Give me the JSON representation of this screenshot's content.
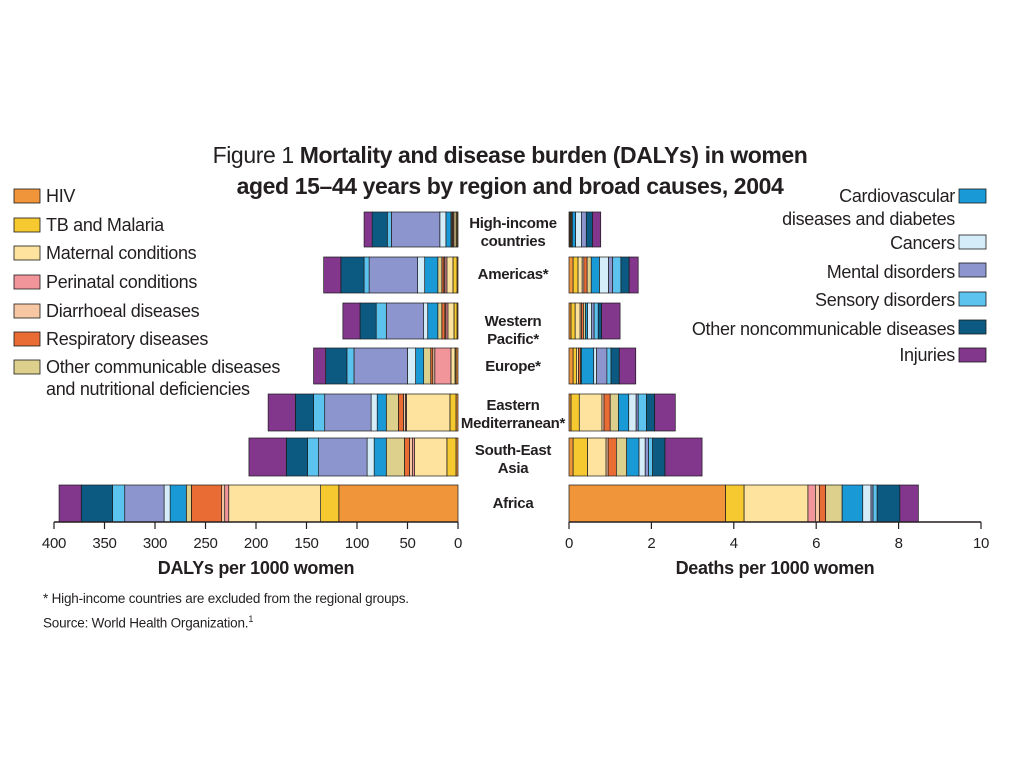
{
  "figure": {
    "label": "Figure 1",
    "title_bold": "Mortality and disease burden (DALYs) in women aged 15–44 years by region and broad causes, 2004",
    "footnote": "* High-income countries are excluded from the regional groups.",
    "source": "Source: World Health Organization.",
    "source_ref": "1"
  },
  "chart_data": {
    "type": "bar",
    "orientation": "horizontal",
    "stacked": true,
    "layout": "back-to-back",
    "categories": [
      "High-income countries",
      "Americas*",
      "Western Pacific*",
      "Europe*",
      "Eastern Mediterranean*",
      "South-East Asia",
      "Africa"
    ],
    "causes": [
      {
        "name": "HIV",
        "color": "#f0953a",
        "legend": "left"
      },
      {
        "name": "TB and Malaria",
        "color": "#f6c931",
        "legend": "left"
      },
      {
        "name": "Maternal conditions",
        "color": "#fde39d",
        "legend": "left"
      },
      {
        "name": "Perinatal conditions",
        "color": "#f2959b",
        "legend": "left"
      },
      {
        "name": "Diarrhoeal diseases",
        "color": "#f7c7a4",
        "legend": "left"
      },
      {
        "name": "Respiratory diseases",
        "color": "#ea6c35",
        "legend": "left"
      },
      {
        "name": "Other communicable diseases and nutritional deficiencies",
        "color": "#ddd08c",
        "legend": "left"
      },
      {
        "name": "Cardiovascular diseases and diabetes",
        "color": "#199ad6",
        "legend": "right"
      },
      {
        "name": "Cancers",
        "color": "#d4edf9",
        "legend": "right"
      },
      {
        "name": "Mental disorders",
        "color": "#8c95ce",
        "legend": "right"
      },
      {
        "name": "Sensory disorders",
        "color": "#5cc3ee",
        "legend": "right"
      },
      {
        "name": "Other noncommunicable diseases",
        "color": "#0c5a82",
        "legend": "right"
      },
      {
        "name": "Injuries",
        "color": "#82378c",
        "legend": "right"
      }
    ],
    "legend_left_lines": [
      [
        "HIV"
      ],
      [
        "TB and Malaria"
      ],
      [
        "Maternal conditions"
      ],
      [
        "Perinatal conditions"
      ],
      [
        "Diarrhoeal diseases"
      ],
      [
        "Respiratory diseases"
      ],
      [
        "Other communicable diseases",
        "and nutritional deficiencies"
      ]
    ],
    "legend_right_lines": [
      [
        "Cardiovascular",
        "diseases and diabetes"
      ],
      [
        "Cancers"
      ],
      [
        "Mental disorders"
      ],
      [
        "Sensory disorders"
      ],
      [
        "Other noncommunicable diseases"
      ],
      [
        "Injuries"
      ]
    ],
    "category_lines": [
      [
        "High-income",
        "countries"
      ],
      [
        "Americas*"
      ],
      [
        "Western",
        "Pacific*"
      ],
      [
        "Europe*"
      ],
      [
        "Eastern",
        "Mediterranean*"
      ],
      [
        "South-East",
        "Asia"
      ],
      [
        "Africa"
      ]
    ],
    "dalys": {
      "xlabel": "DALYs per 1000 women",
      "xlim": [
        0,
        400
      ],
      "ticks": [
        400,
        350,
        300,
        250,
        200,
        150,
        100,
        50,
        0
      ],
      "series": [
        {
          "name": "HIV",
          "values": [
            1,
            1,
            1,
            2,
            2,
            2,
            118
          ]
        },
        {
          "name": "TB and Malaria",
          "values": [
            1,
            4,
            3,
            1,
            6,
            9,
            18
          ]
        },
        {
          "name": "Maternal conditions",
          "values": [
            2,
            6,
            6,
            4,
            43,
            32,
            91
          ]
        },
        {
          "name": "Perinatal conditions",
          "values": [
            1,
            2,
            2,
            16,
            1,
            2,
            4
          ]
        },
        {
          "name": "Diarrhoeal diseases",
          "values": [
            0,
            1,
            1,
            2,
            2,
            3,
            3
          ]
        },
        {
          "name": "Respiratory diseases",
          "values": [
            1,
            2,
            3,
            2,
            5,
            5,
            30
          ]
        },
        {
          "name": "Other communicable diseases and nutritional deficiencies",
          "values": [
            1,
            4,
            4,
            7,
            12,
            18,
            5
          ]
        },
        {
          "name": "Cardiovascular diseases and diabetes",
          "values": [
            5,
            13,
            10,
            8,
            9,
            12,
            16
          ]
        },
        {
          "name": "Cancers",
          "values": [
            6,
            7,
            4,
            8,
            6,
            7,
            6
          ]
        },
        {
          "name": "Mental disorders",
          "values": [
            48,
            48,
            37,
            53,
            46,
            48,
            39
          ]
        },
        {
          "name": "Sensory disorders",
          "values": [
            4,
            5,
            10,
            7,
            11,
            11,
            12
          ]
        },
        {
          "name": "Other noncommunicable diseases",
          "values": [
            15,
            23,
            16,
            21,
            18,
            21,
            31
          ]
        },
        {
          "name": "Injuries",
          "values": [
            8,
            17,
            17,
            12,
            27,
            37,
            22
          ]
        }
      ]
    },
    "deaths": {
      "xlabel": "Deaths per 1000 women",
      "xlim": [
        0,
        10
      ],
      "ticks": [
        0,
        2,
        4,
        6,
        8,
        10
      ],
      "series": [
        {
          "name": "HIV",
          "values": [
            0.02,
            0.1,
            0.05,
            0.1,
            0.05,
            0.1,
            3.8
          ]
        },
        {
          "name": "TB and Malaria",
          "values": [
            0.02,
            0.12,
            0.1,
            0.08,
            0.2,
            0.35,
            0.45
          ]
        },
        {
          "name": "Maternal conditions",
          "values": [
            0.02,
            0.1,
            0.12,
            0.05,
            0.55,
            0.45,
            1.55
          ]
        },
        {
          "name": "Perinatal conditions",
          "values": [
            0,
            0,
            0,
            0,
            0,
            0,
            0.18
          ]
        },
        {
          "name": "Diarrhoeal diseases",
          "values": [
            0,
            0.04,
            0.03,
            0,
            0.05,
            0.05,
            0.1
          ]
        },
        {
          "name": "Respiratory diseases",
          "values": [
            0.02,
            0.08,
            0.05,
            0.05,
            0.15,
            0.2,
            0.15
          ]
        },
        {
          "name": "Other communicable diseases and nutritional deficiencies",
          "values": [
            0,
            0.1,
            0.05,
            0.02,
            0.2,
            0.25,
            0.4
          ]
        },
        {
          "name": "Cardiovascular diseases and diabetes",
          "values": [
            0.08,
            0.2,
            0.05,
            0.3,
            0.25,
            0.3,
            0.5
          ]
        },
        {
          "name": "Cancers",
          "values": [
            0.14,
            0.22,
            0.1,
            0.07,
            0.18,
            0.15,
            0.2
          ]
        },
        {
          "name": "Mental disorders",
          "values": [
            0.12,
            0.1,
            0.06,
            0.25,
            0.05,
            0.08,
            0.05
          ]
        },
        {
          "name": "Sensory disorders",
          "values": [
            0,
            0.2,
            0.1,
            0.1,
            0.2,
            0.1,
            0.1
          ]
        },
        {
          "name": "Other noncommunicable diseases",
          "values": [
            0.15,
            0.2,
            0.08,
            0.2,
            0.2,
            0.3,
            0.55
          ]
        },
        {
          "name": "Injuries",
          "values": [
            0.2,
            0.22,
            0.45,
            0.4,
            0.5,
            0.9,
            0.45
          ]
        }
      ]
    }
  }
}
